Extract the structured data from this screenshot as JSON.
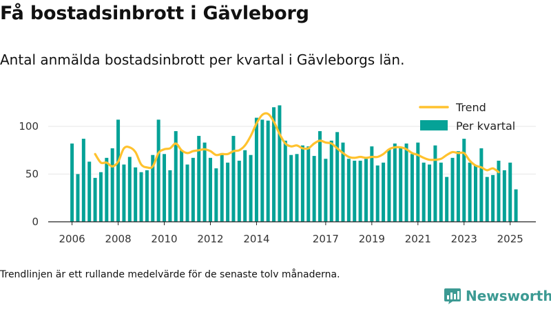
{
  "title": "Få bostadsinbrott i Gävleborg",
  "subtitle": "Antal anmälda bostadsinbrott per kvartal i Gävleborgs län.",
  "footnote": "Trendlinjen är ett rullande medelvärde för de senaste tolv månaderna.",
  "brand": "Newsworthy",
  "colors": {
    "bars": "#05a297",
    "trend": "#ffc22e",
    "brand": "#3c9a93",
    "grid": "#e6e6e6"
  },
  "chart_data": {
    "type": "bar",
    "x_start": "2006 Q1",
    "xlabel": "",
    "ylabel": "",
    "ylim": [
      0,
      125
    ],
    "yticks": [
      0,
      50,
      100
    ],
    "xticks": [
      "2006",
      "2008",
      "2010",
      "2012",
      "2014",
      "2017",
      "2019",
      "2021",
      "2023",
      "2025"
    ],
    "grid": true,
    "legend_position": "top-right",
    "series": [
      {
        "name": "Per kvartal",
        "type": "bar",
        "values": [
          82,
          50,
          87,
          63,
          46,
          52,
          67,
          77,
          107,
          60,
          68,
          57,
          52,
          54,
          70,
          107,
          71,
          54,
          95,
          75,
          60,
          67,
          90,
          83,
          67,
          56,
          72,
          62,
          90,
          64,
          75,
          70,
          109,
          107,
          106,
          120,
          122,
          85,
          70,
          71,
          80,
          79,
          69,
          95,
          66,
          85,
          94,
          83,
          66,
          64,
          64,
          66,
          79,
          59,
          62,
          76,
          82,
          77,
          82,
          71,
          83,
          62,
          60,
          80,
          62,
          47,
          67,
          74,
          87,
          62,
          59,
          77,
          47,
          49,
          64,
          54,
          62,
          34
        ]
      },
      {
        "name": "Trend",
        "type": "line",
        "start_index": 4,
        "values": [
          71,
          62,
          62,
          58,
          63,
          77,
          78,
          73,
          60,
          57,
          58,
          72,
          76,
          77,
          82,
          75,
          72,
          74,
          75,
          76,
          74,
          70,
          71,
          71,
          74,
          75,
          80,
          90,
          103,
          112,
          113,
          105,
          92,
          82,
          79,
          80,
          77,
          77,
          82,
          85,
          83,
          82,
          77,
          72,
          68,
          67,
          68,
          67,
          68,
          68,
          71,
          76,
          78,
          78,
          76,
          72,
          70,
          67,
          65,
          65,
          66,
          70,
          73,
          72,
          72,
          64,
          59,
          57,
          54,
          56,
          52
        ]
      }
    ]
  }
}
